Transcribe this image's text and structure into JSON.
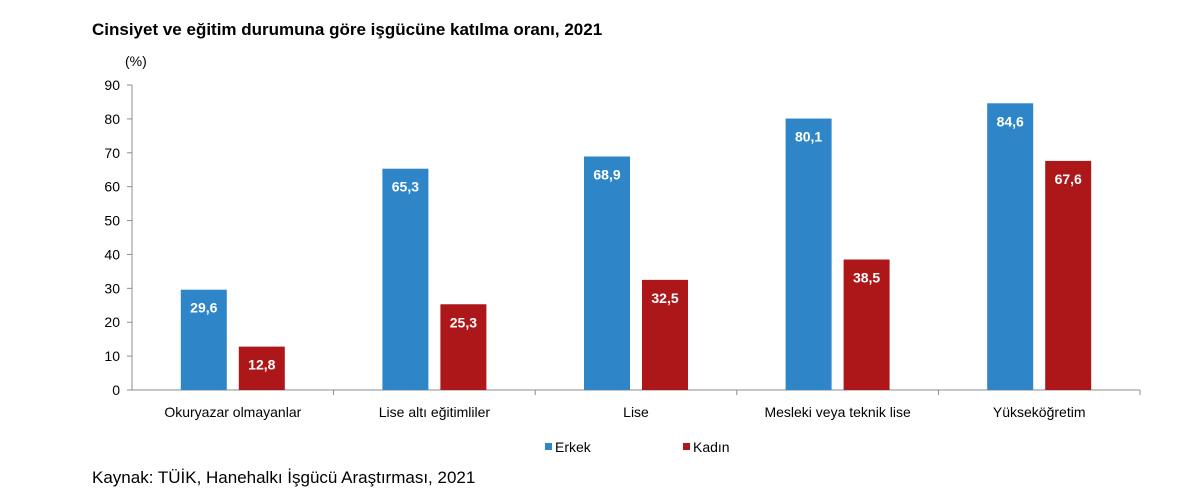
{
  "title": "Cinsiyet ve eğitim durumuna göre işgücüne katılma oranı, 2021",
  "source": "Kaynak: TÜİK, Hanehalkı İşgücü Araştırması, 2021",
  "chart_data": {
    "type": "bar",
    "title": "Cinsiyet ve eğitim durumuna göre işgücüne katılma oranı, 2021",
    "unit_label": "(%)",
    "xlabel": "",
    "ylabel": "",
    "ylim": [
      0,
      90
    ],
    "yticks": [
      0,
      10,
      20,
      30,
      40,
      50,
      60,
      70,
      80,
      90
    ],
    "categories": [
      "Okuryazar olmayanlar",
      "Lise altı eğitimliler",
      "Lise",
      "Mesleki veya teknik lise",
      "Yükseköğretim"
    ],
    "series": [
      {
        "name": "Erkek",
        "color": "#2e86c8",
        "values": [
          29.6,
          65.3,
          68.9,
          80.1,
          84.6
        ],
        "labels": [
          "29,6",
          "65,3",
          "68,9",
          "80,1",
          "84,6"
        ]
      },
      {
        "name": "Kadın",
        "color": "#ae1719",
        "values": [
          12.8,
          25.3,
          32.5,
          38.5,
          67.6
        ],
        "labels": [
          "12,8",
          "25,3",
          "32,5",
          "38,5",
          "67,6"
        ]
      }
    ],
    "legend": "bottom-center",
    "grid": false
  }
}
